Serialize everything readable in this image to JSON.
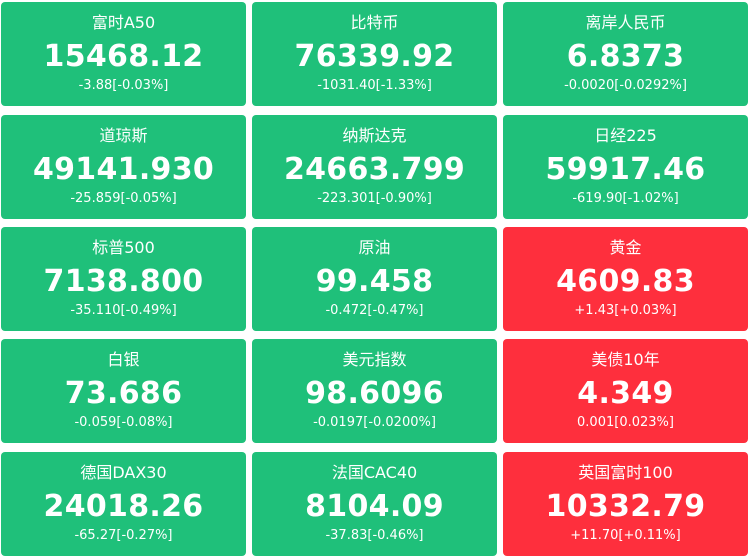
{
  "colors": {
    "down": "#1fc07a",
    "up": "#fe2f3d",
    "text": "#ffffff"
  },
  "tiles": [
    {
      "name": "富时A50",
      "price": "15468.12",
      "change": "-3.88[-0.03%]",
      "trend": "down"
    },
    {
      "name": "比特币",
      "price": "76339.92",
      "change": "-1031.40[-1.33%]",
      "trend": "down"
    },
    {
      "name": "离岸人民币",
      "price": "6.8373",
      "change": "-0.0020[-0.0292%]",
      "trend": "down"
    },
    {
      "name": "道琼斯",
      "price": "49141.930",
      "change": "-25.859[-0.05%]",
      "trend": "down"
    },
    {
      "name": "纳斯达克",
      "price": "24663.799",
      "change": "-223.301[-0.90%]",
      "trend": "down"
    },
    {
      "name": "日经225",
      "price": "59917.46",
      "change": "-619.90[-1.02%]",
      "trend": "down"
    },
    {
      "name": "标普500",
      "price": "7138.800",
      "change": "-35.110[-0.49%]",
      "trend": "down"
    },
    {
      "name": "原油",
      "price": "99.458",
      "change": "-0.472[-0.47%]",
      "trend": "down"
    },
    {
      "name": "黄金",
      "price": "4609.83",
      "change": "+1.43[+0.03%]",
      "trend": "up"
    },
    {
      "name": "白银",
      "price": "73.686",
      "change": "-0.059[-0.08%]",
      "trend": "down"
    },
    {
      "name": "美元指数",
      "price": "98.6096",
      "change": "-0.0197[-0.0200%]",
      "trend": "down"
    },
    {
      "name": "美债10年",
      "price": "4.349",
      "change": "0.001[0.023%]",
      "trend": "up"
    },
    {
      "name": "德国DAX30",
      "price": "24018.26",
      "change": "-65.27[-0.27%]",
      "trend": "down"
    },
    {
      "name": "法国CAC40",
      "price": "8104.09",
      "change": "-37.83[-0.46%]",
      "trend": "down"
    },
    {
      "name": "英国富时100",
      "price": "10332.79",
      "change": "+11.70[+0.11%]",
      "trend": "up"
    }
  ]
}
